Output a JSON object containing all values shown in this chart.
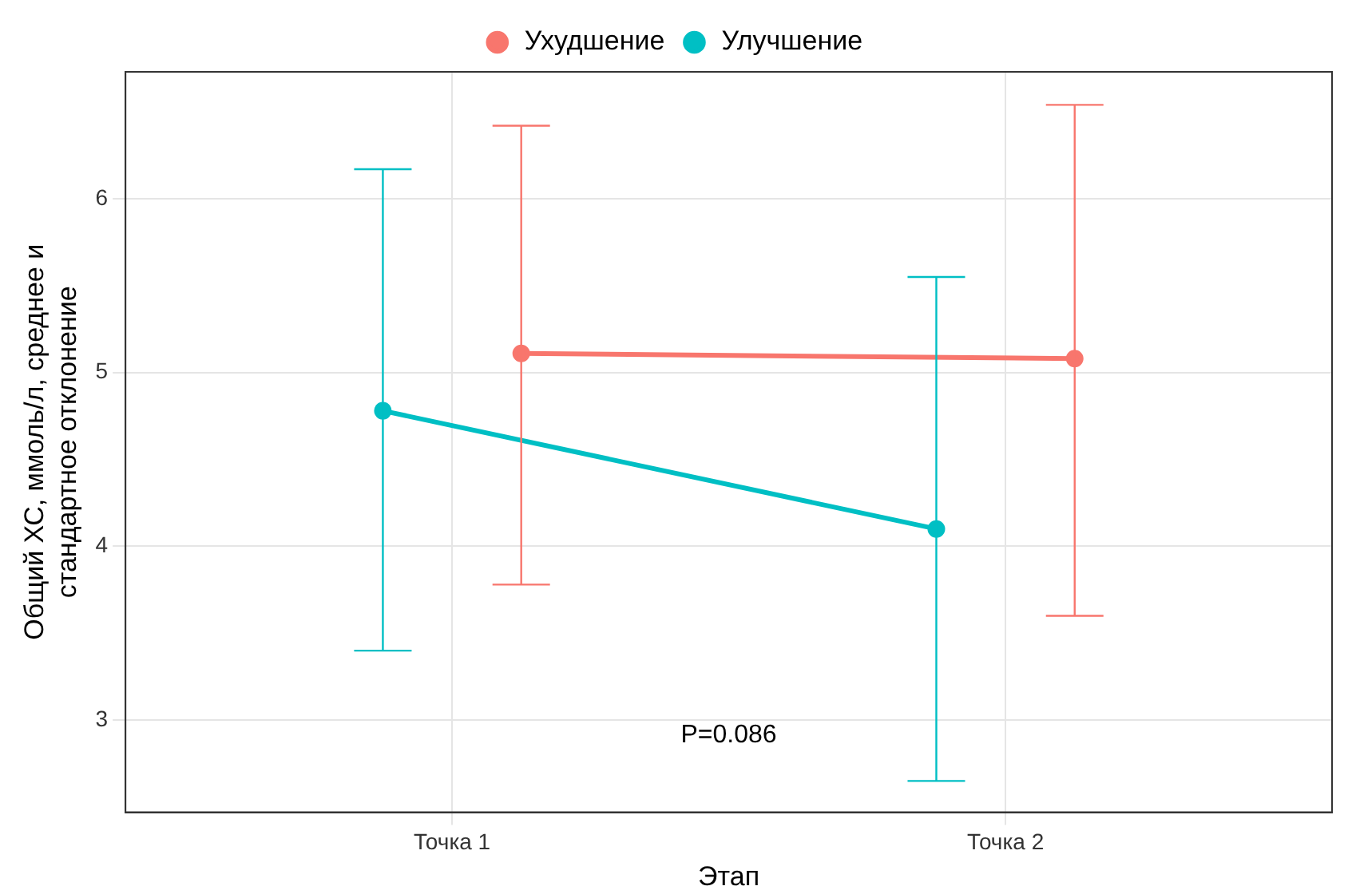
{
  "chart_data": {
    "type": "line",
    "xlabel": "Этап",
    "ylabel": "Общий ХС, ммоль/л, среднее и\nстандартное отклонение",
    "categories": [
      "Точка 1",
      "Точка 2"
    ],
    "series": [
      {
        "name": "Ухудшение",
        "color": "#f8766d",
        "values": [
          5.11,
          5.08
        ],
        "errors": [
          [
            3.78,
            6.42
          ],
          [
            3.6,
            6.54
          ]
        ]
      },
      {
        "name": "Улучшение",
        "color": "#00bfc4",
        "values": [
          4.78,
          4.1
        ],
        "errors": [
          [
            3.4,
            6.17
          ],
          [
            2.65,
            5.55
          ]
        ]
      }
    ],
    "ylim": [
      2.47,
      6.73
    ],
    "yticks": [
      3,
      4,
      5,
      6
    ],
    "grid": true,
    "legend": "top",
    "marker": "circle",
    "line_style": "solid",
    "annotations": [
      "P=0.086"
    ]
  }
}
